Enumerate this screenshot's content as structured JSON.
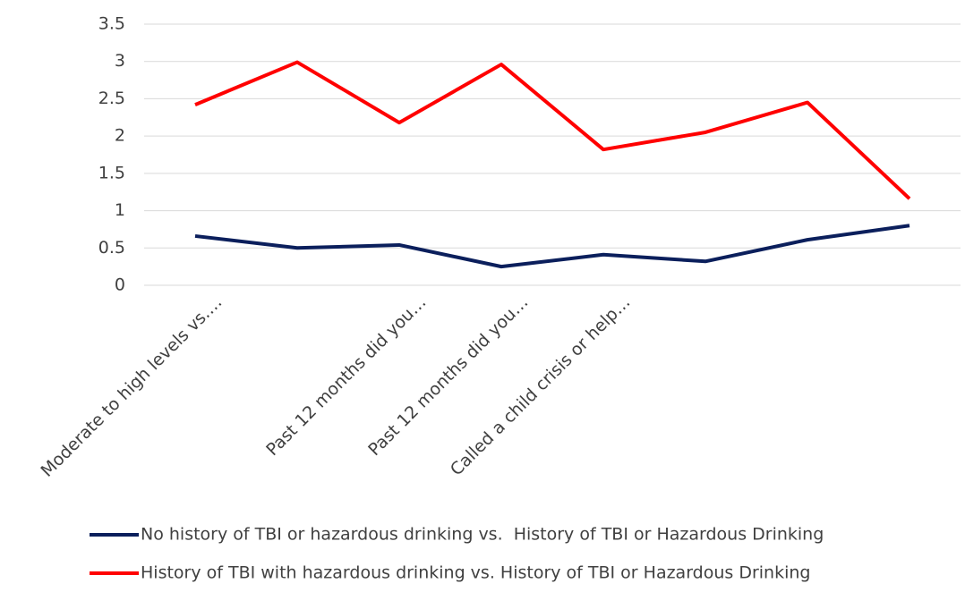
{
  "chart_data": {
    "type": "line",
    "categories": [
      "Moderate to high levels vs.…",
      null,
      "Past 12 months did you…",
      "Past 12 months did you…",
      "Called a child crisis or help…",
      null,
      null,
      null
    ],
    "series": [
      {
        "name": "No history of TBI or hazardous drinking vs.  History of TBI or Hazardous Drinking",
        "color": "#0b1f5c",
        "values": [
          0.66,
          0.5,
          0.54,
          0.25,
          0.41,
          0.32,
          0.61,
          0.8
        ]
      },
      {
        "name": "History of TBI with hazardous drinking vs. History of TBI or Hazardous Drinking",
        "color": "#ff0000",
        "values": [
          2.42,
          2.99,
          2.18,
          2.96,
          1.82,
          2.05,
          2.45,
          1.16
        ]
      }
    ],
    "ylim": [
      0,
      3.5
    ],
    "yticks": [
      0,
      0.5,
      1,
      1.5,
      2,
      2.5,
      3,
      3.5
    ],
    "grid": true,
    "legend": "bottom"
  }
}
